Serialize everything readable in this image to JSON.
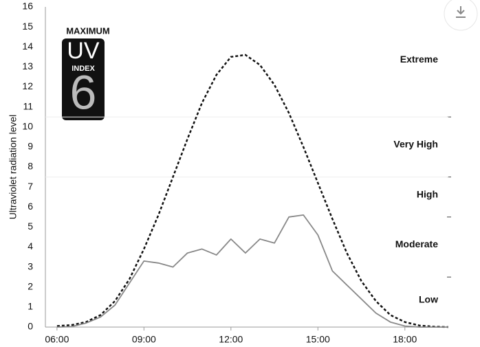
{
  "chart_data": {
    "type": "line",
    "y_label": "Ultraviolet radiation level",
    "x": [
      6,
      6.5,
      7,
      7.5,
      8,
      8.5,
      9,
      9.5,
      10,
      10.5,
      11,
      11.5,
      12,
      12.5,
      13,
      13.5,
      14,
      14.5,
      15,
      15.5,
      16,
      16.5,
      17,
      17.5,
      18,
      18.5,
      19,
      19.5
    ],
    "series": [
      {
        "color": "#111111",
        "dash": true,
        "values": [
          0.05,
          0.1,
          0.25,
          0.6,
          1.3,
          2.4,
          3.9,
          5.6,
          7.5,
          9.4,
          11.2,
          12.6,
          13.5,
          13.6,
          13.1,
          12.1,
          10.7,
          9.0,
          7.2,
          5.4,
          3.7,
          2.3,
          1.3,
          0.6,
          0.25,
          0.08,
          0.02,
          0
        ]
      },
      {
        "color": "#888888",
        "dash": false,
        "values": [
          0,
          0.02,
          0.2,
          0.5,
          1.1,
          2.2,
          3.3,
          3.2,
          3.0,
          3.7,
          3.9,
          3.6,
          4.4,
          3.7,
          4.4,
          4.2,
          5.5,
          5.6,
          4.6,
          2.8,
          2.1,
          1.4,
          0.7,
          0.25,
          0.05,
          0,
          0,
          0
        ]
      }
    ],
    "xlim": [
      5.6,
      19.5
    ],
    "xticks": [
      {
        "value": 6,
        "label": "06:00"
      },
      {
        "value": 9,
        "label": "09:00"
      },
      {
        "value": 12,
        "label": "12:00"
      },
      {
        "value": 15,
        "label": "15:00"
      },
      {
        "value": 18,
        "label": "18:00"
      }
    ],
    "ylim": [
      0,
      16
    ],
    "yticks": [
      0,
      1,
      2,
      3,
      4,
      5,
      6,
      7,
      8,
      9,
      10,
      11,
      12,
      13,
      14,
      15,
      16
    ],
    "band_edges": [
      2.5,
      5.5,
      7.5,
      10.5
    ],
    "band_labels": [
      "Low",
      "Moderate",
      "High",
      "Very High",
      "Extreme"
    ]
  },
  "badge": {
    "heading": "MAXIMUM",
    "uv": "UV",
    "index": "INDEX",
    "value": "6"
  }
}
